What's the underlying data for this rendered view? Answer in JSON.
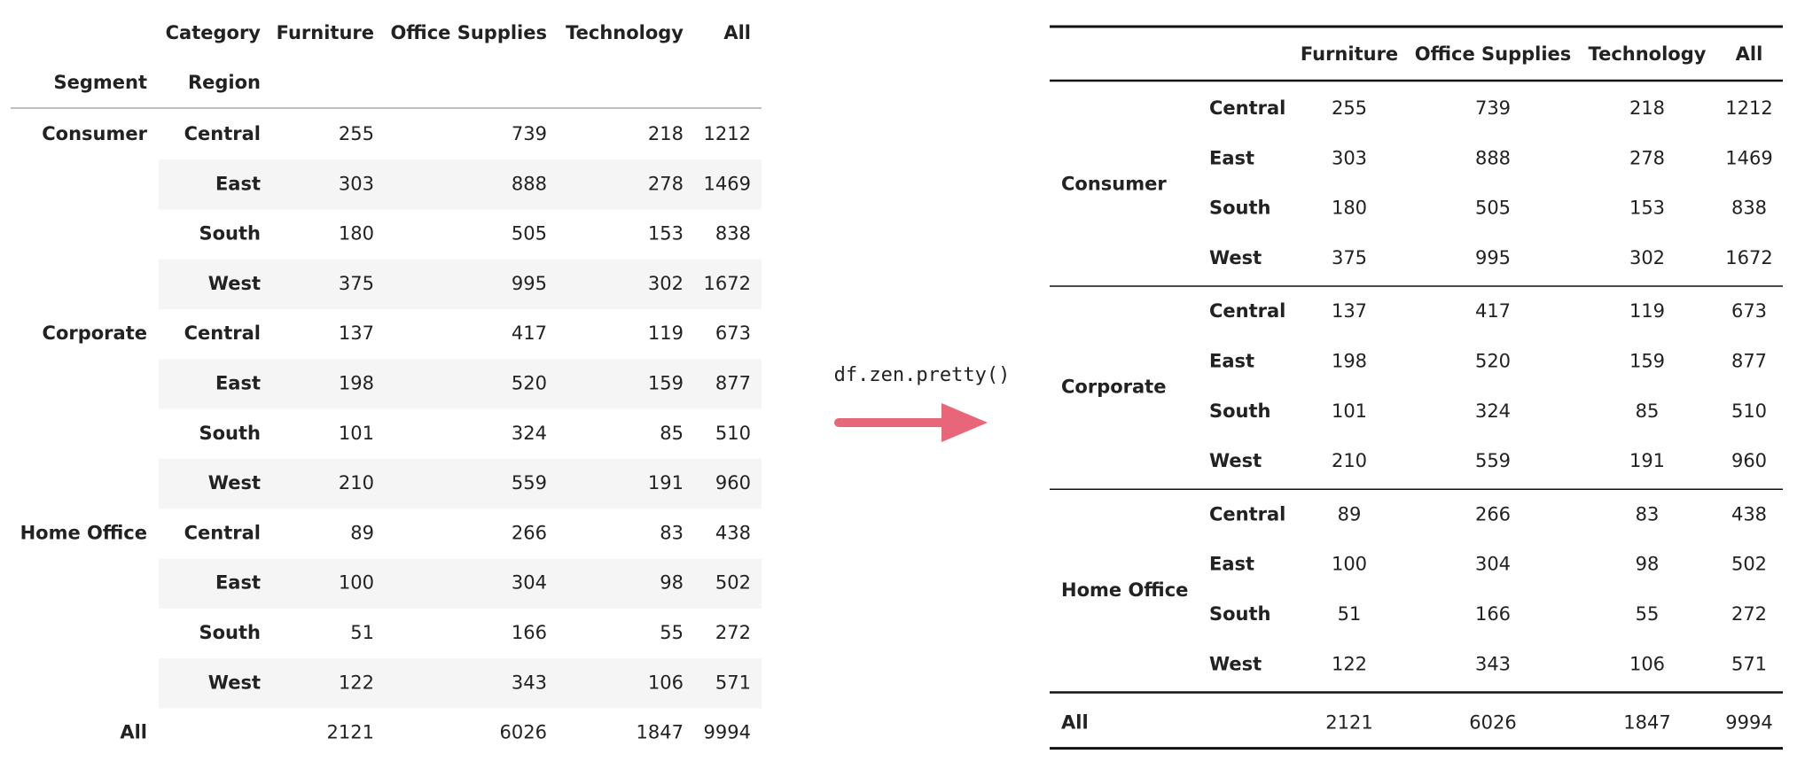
{
  "left_header": {
    "column_name": "Category",
    "index_names": [
      "Segment",
      "Region"
    ]
  },
  "columns": [
    "Furniture",
    "Office Supplies",
    "Technology",
    "All"
  ],
  "segments": [
    {
      "name": "Consumer",
      "rows": [
        {
          "region": "Central",
          "values": [
            255,
            739,
            218,
            1212
          ]
        },
        {
          "region": "East",
          "values": [
            303,
            888,
            278,
            1469
          ]
        },
        {
          "region": "South",
          "values": [
            180,
            505,
            153,
            838
          ]
        },
        {
          "region": "West",
          "values": [
            375,
            995,
            302,
            1672
          ]
        }
      ]
    },
    {
      "name": "Corporate",
      "rows": [
        {
          "region": "Central",
          "values": [
            137,
            417,
            119,
            673
          ]
        },
        {
          "region": "East",
          "values": [
            198,
            520,
            159,
            877
          ]
        },
        {
          "region": "South",
          "values": [
            101,
            324,
            85,
            510
          ]
        },
        {
          "region": "West",
          "values": [
            210,
            559,
            191,
            960
          ]
        }
      ]
    },
    {
      "name": "Home Office",
      "rows": [
        {
          "region": "Central",
          "values": [
            89,
            266,
            83,
            438
          ]
        },
        {
          "region": "East",
          "values": [
            100,
            304,
            98,
            502
          ]
        },
        {
          "region": "South",
          "values": [
            51,
            166,
            55,
            272
          ]
        },
        {
          "region": "West",
          "values": [
            122,
            343,
            106,
            571
          ]
        }
      ]
    }
  ],
  "total": {
    "label": "All",
    "values": [
      2121,
      6026,
      1847,
      9994
    ]
  },
  "code": "df.zen.pretty()"
}
